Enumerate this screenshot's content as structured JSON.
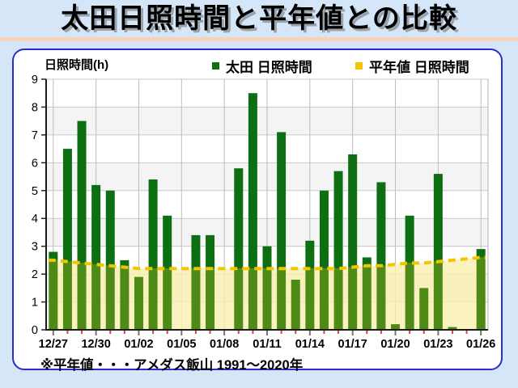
{
  "page": {
    "title": "太田日照時間と平年値との比較",
    "background_color": "#d4e6f8",
    "divider_color": "#f8d1b8"
  },
  "footer": {
    "note": "※平年値・・・アメダス飯山 1991～2020年"
  },
  "chart_data": {
    "type": "bar",
    "title": "太田日照時間と平年値との比較",
    "ylabel": "日照時間(h)",
    "xlabel": "",
    "ylim": [
      0,
      9
    ],
    "ytick_step": 1,
    "grid": true,
    "legend_position": "top",
    "band_colors": [
      "#ffffff",
      "#f4f4f4"
    ],
    "categories": [
      "12/27",
      "12/28",
      "12/29",
      "12/30",
      "12/31",
      "01/01",
      "01/02",
      "01/03",
      "01/04",
      "01/05",
      "01/06",
      "01/07",
      "01/08",
      "01/09",
      "01/10",
      "01/11",
      "01/12",
      "01/13",
      "01/14",
      "01/15",
      "01/16",
      "01/17",
      "01/18",
      "01/19",
      "01/20",
      "01/21",
      "01/22",
      "01/23",
      "01/24",
      "01/25",
      "01/26"
    ],
    "xtick_label_every": 3,
    "xtick_labels": [
      "12/27",
      "12/30",
      "01/02",
      "01/05",
      "01/08",
      "01/11",
      "01/14",
      "01/17",
      "01/20",
      "01/23",
      "01/26"
    ],
    "series": [
      {
        "name": "太田 日照時間",
        "type": "bar",
        "color": "#0d6e12",
        "color_below_normal": "#4d8a16",
        "values": [
          2.8,
          6.5,
          7.5,
          5.2,
          5.0,
          2.5,
          1.9,
          5.4,
          4.1,
          0,
          3.4,
          3.4,
          0,
          5.8,
          8.5,
          3.0,
          7.1,
          1.8,
          3.2,
          5.0,
          5.7,
          6.3,
          2.6,
          5.3,
          0.2,
          4.1,
          1.5,
          5.6,
          0.1,
          0,
          2.9
        ]
      },
      {
        "name": "平年値 日照時間",
        "type": "dashed-line-with-area",
        "color": "#f2c500",
        "area_color": "rgba(250,240,175,0.8)",
        "values": [
          2.5,
          2.45,
          2.4,
          2.35,
          2.3,
          2.25,
          2.2,
          2.2,
          2.2,
          2.2,
          2.2,
          2.2,
          2.2,
          2.2,
          2.2,
          2.2,
          2.2,
          2.2,
          2.2,
          2.2,
          2.2,
          2.25,
          2.3,
          2.3,
          2.35,
          2.4,
          2.4,
          2.45,
          2.5,
          2.55,
          2.6
        ]
      }
    ]
  }
}
